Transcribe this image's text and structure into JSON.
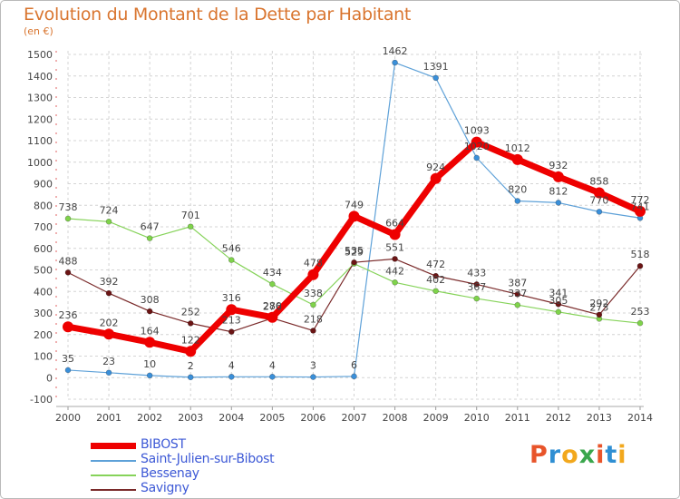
{
  "title": "Evolution du Montant de la Dette par Habitant",
  "subtitle": "(en €)",
  "logo": {
    "letters": [
      "P",
      "r",
      "o",
      "x",
      "i",
      "t",
      "i"
    ],
    "colors": [
      "#e8542a",
      "#2f8fd3",
      "#f2a81d",
      "#3aa64c",
      "#e8542a",
      "#2f8fd3",
      "#f2a81d"
    ]
  },
  "chart_data": {
    "type": "line",
    "x": [
      "2000",
      "2001",
      "2002",
      "2003",
      "2004",
      "2005",
      "2006",
      "2007",
      "2008",
      "2009",
      "2010",
      "2011",
      "2012",
      "2013",
      "2014"
    ],
    "ylim": [
      -100,
      1500
    ],
    "yticks": [
      "-100",
      "0",
      "100",
      "200",
      "300",
      "400",
      "500",
      "600",
      "700",
      "800",
      "900",
      "1000",
      "1100",
      "1200",
      "1300",
      "1400",
      "1500"
    ],
    "grid": true,
    "legend_position": "bottom-left",
    "series": [
      {
        "name": "BIBOST",
        "color": "#ee0000",
        "line_color": "#ee0000",
        "width": 7,
        "marker": 6,
        "values": [
          236,
          202,
          164,
          122,
          316,
          280,
          478,
          749,
          664,
          924,
          1093,
          1012,
          932,
          858,
          772
        ],
        "labels": [
          "236",
          "202",
          "164",
          "122",
          "316",
          "280",
          "478",
          "749",
          "664",
          "924",
          "1093",
          "1012",
          "932",
          "858",
          "772"
        ]
      },
      {
        "name": "Saint-Julien-sur-Bibost",
        "color": "#3a8fd9",
        "line_color": "#5ea1d8",
        "width": 1.2,
        "marker": 3,
        "values": [
          35,
          23,
          10,
          2,
          4,
          4,
          3,
          6,
          1462,
          1391,
          1020,
          820,
          812,
          770,
          741
        ],
        "labels": [
          "35",
          "23",
          "10",
          "2",
          "4",
          "4",
          "3",
          "6",
          "1462",
          "1391",
          "1020",
          "820",
          "812",
          "770",
          "741"
        ]
      },
      {
        "name": "Bessenay",
        "color": "#7fd34b",
        "line_color": "#86d35a",
        "width": 1.2,
        "marker": 3,
        "values": [
          738,
          724,
          647,
          701,
          546,
          434,
          338,
          529,
          442,
          402,
          367,
          337,
          305,
          273,
          253
        ],
        "labels": [
          "738",
          "724",
          "647",
          "701",
          "546",
          "434",
          "338",
          "529",
          "442",
          "402",
          "367",
          "337",
          "305",
          "273",
          "253"
        ]
      },
      {
        "name": "Savigny",
        "color": "#6b1414",
        "line_color": "#7a2a2a",
        "width": 1.2,
        "marker": 3,
        "values": [
          488,
          392,
          308,
          252,
          213,
          276,
          218,
          535,
          551,
          472,
          433,
          387,
          341,
          292,
          518
        ],
        "labels": [
          "488",
          "392",
          "308",
          "252",
          "213",
          "276",
          "218",
          "535",
          "551",
          "472",
          "433",
          "387",
          "341",
          "292",
          "518"
        ]
      }
    ]
  }
}
